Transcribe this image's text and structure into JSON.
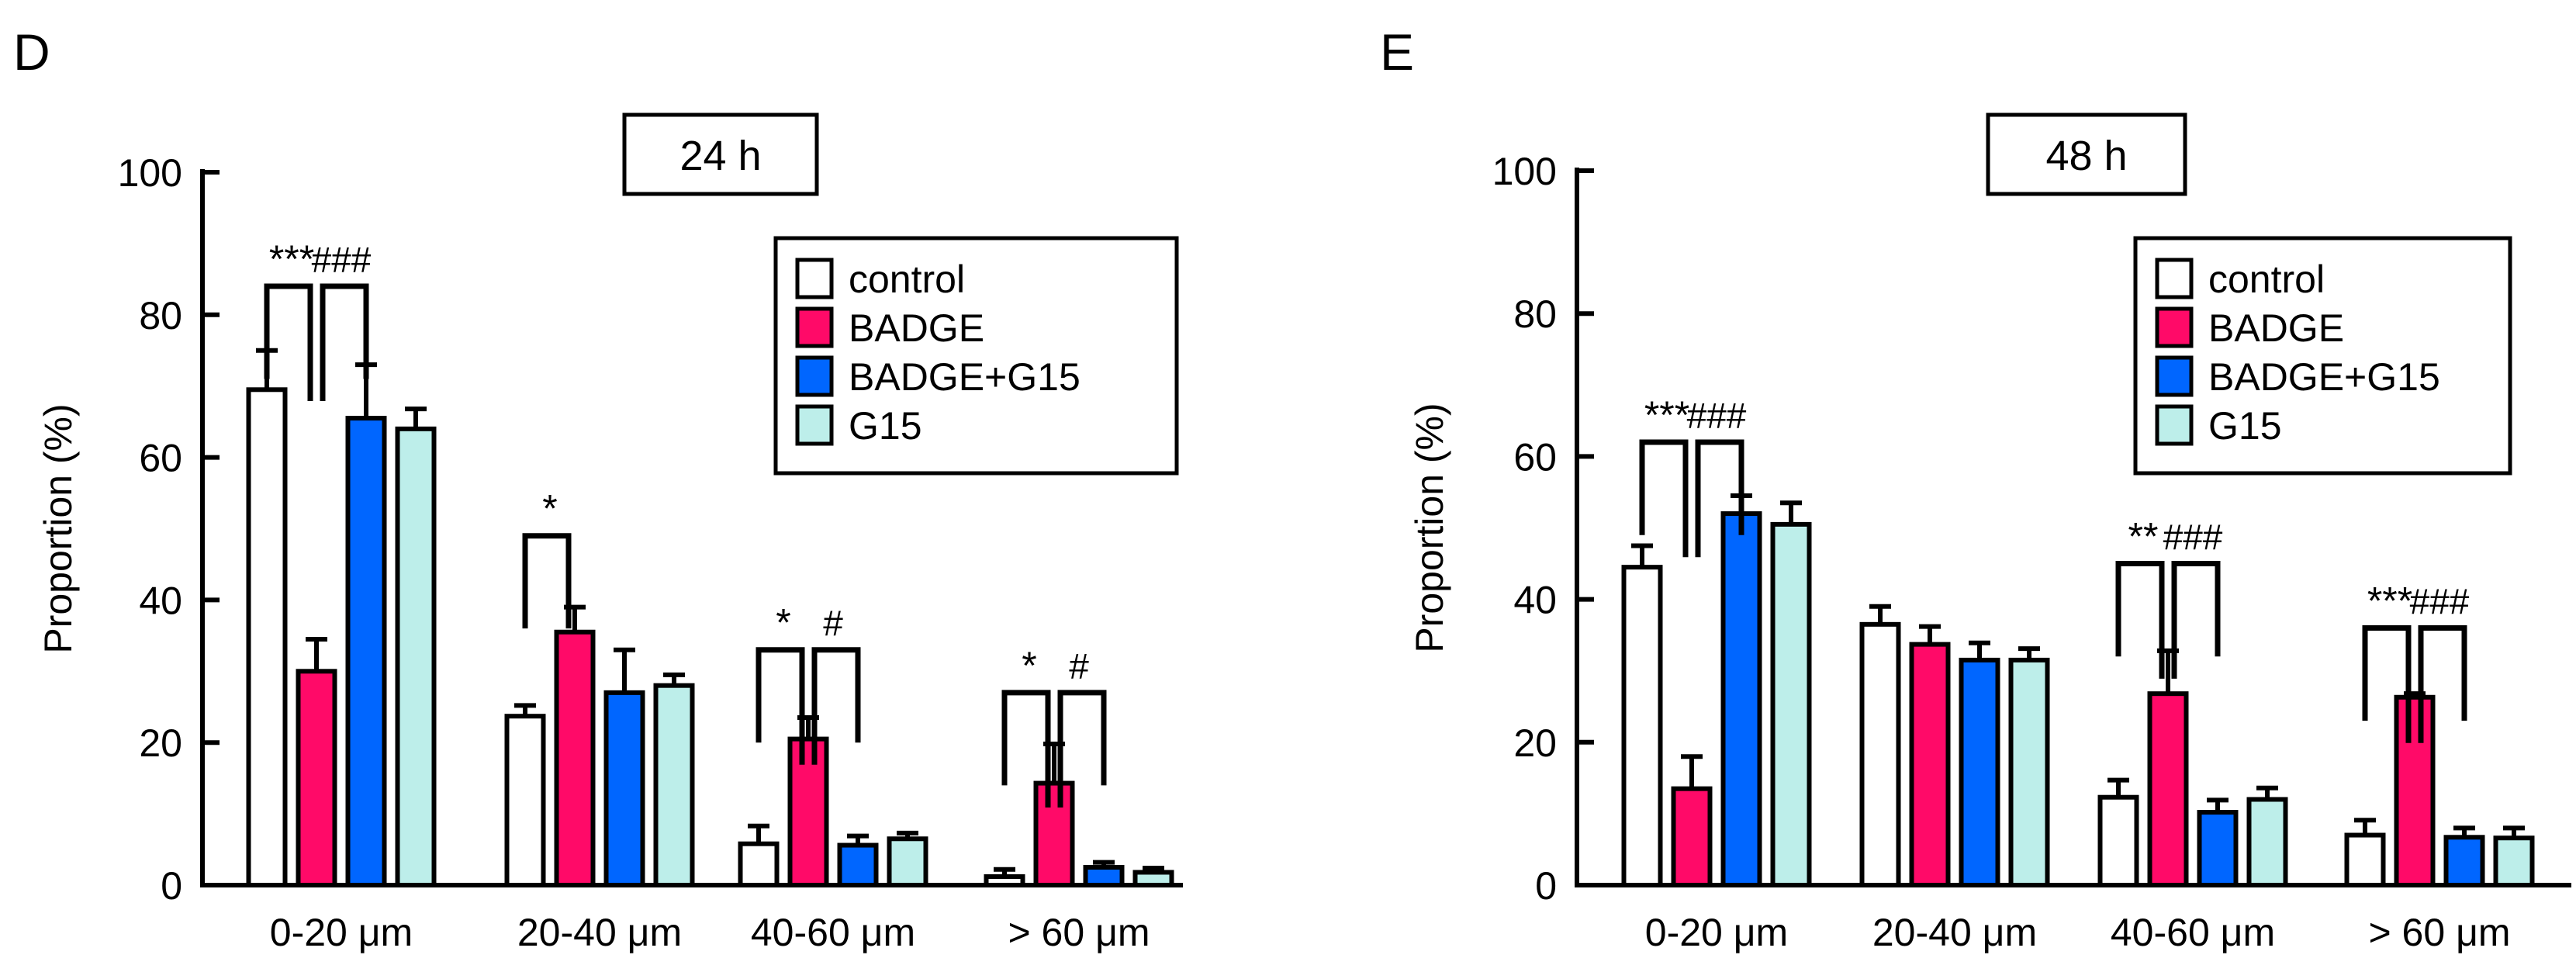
{
  "colors": {
    "control": "#ffffff",
    "BADGE": "#ff0a68",
    "BADGE+G15": "#0066ff",
    "G15": "#bdeeea",
    "stroke": "#000000"
  },
  "chart_data": [
    {
      "panel_label": "D",
      "type": "bar",
      "title": "24 h",
      "ylabel": "Proportion (%)",
      "ylim": [
        0,
        100
      ],
      "yticks": [
        "0",
        "20",
        "40",
        "60",
        "80",
        "100"
      ],
      "categories": [
        "0-20 μm",
        "20-40 μm",
        "40-60 μm",
        "> 60 μm"
      ],
      "legend": [
        "control",
        "BADGE",
        "BADGE+G15",
        "G15"
      ],
      "legend_position": "top-right",
      "series": [
        {
          "name": "control",
          "values": [
            69.5,
            23.7,
            5.8,
            1.2
          ],
          "errors": [
            5.5,
            1.5,
            2.5,
            1.0
          ]
        },
        {
          "name": "BADGE",
          "values": [
            30.0,
            35.5,
            20.5,
            14.3
          ],
          "errors": [
            4.5,
            3.5,
            3.0,
            5.5
          ]
        },
        {
          "name": "BADGE+G15",
          "values": [
            65.5,
            27.0,
            5.6,
            2.5
          ],
          "errors": [
            7.5,
            6.0,
            1.3,
            0.7
          ]
        },
        {
          "name": "G15",
          "values": [
            64.0,
            28.0,
            6.5,
            1.8
          ],
          "errors": [
            2.8,
            1.5,
            0.8,
            0.6
          ]
        }
      ],
      "annotations": [
        {
          "category": 0,
          "level": 84,
          "left": "***",
          "right": "###",
          "pair_right": true
        },
        {
          "category": 1,
          "level": 49,
          "left": "*",
          "right": "",
          "pair_right": false
        },
        {
          "category": 2,
          "level": 33,
          "left": "*",
          "right": "#",
          "pair_right": true
        },
        {
          "category": 3,
          "level": 27,
          "left": "*",
          "right": "#",
          "pair_right": true
        }
      ]
    },
    {
      "panel_label": "E",
      "type": "bar",
      "title": "48 h",
      "ylabel": "Proportion (%)",
      "ylim": [
        0,
        100
      ],
      "yticks": [
        "0",
        "20",
        "40",
        "60",
        "80",
        "100"
      ],
      "categories": [
        "0-20 μm",
        "20-40 μm",
        "40-60 μm",
        "> 60 μm"
      ],
      "legend": [
        "control",
        "BADGE",
        "BADGE+G15",
        "G15"
      ],
      "legend_position": "top-right",
      "series": [
        {
          "name": "control",
          "values": [
            44.5,
            36.5,
            12.3,
            7.0
          ],
          "errors": [
            3.0,
            2.5,
            2.4,
            2.1
          ]
        },
        {
          "name": "BADGE",
          "values": [
            13.5,
            33.7,
            26.8,
            26.3
          ],
          "errors": [
            4.5,
            2.5,
            6.0,
            0.5
          ]
        },
        {
          "name": "BADGE+G15",
          "values": [
            52.0,
            31.5,
            10.2,
            6.7
          ],
          "errors": [
            2.5,
            2.4,
            1.7,
            1.3
          ]
        },
        {
          "name": "G15",
          "values": [
            50.5,
            31.5,
            12.0,
            6.6
          ],
          "errors": [
            3.0,
            1.6,
            1.6,
            1.4
          ]
        }
      ],
      "annotations": [
        {
          "category": 0,
          "level": 62,
          "left": "***",
          "right": "###",
          "pair_right": true
        },
        {
          "category": 2,
          "level": 45,
          "left": "**",
          "right": "###",
          "pair_right": true
        },
        {
          "category": 3,
          "level": 36,
          "left": "***",
          "right": "###",
          "pair_right": true
        }
      ]
    }
  ]
}
